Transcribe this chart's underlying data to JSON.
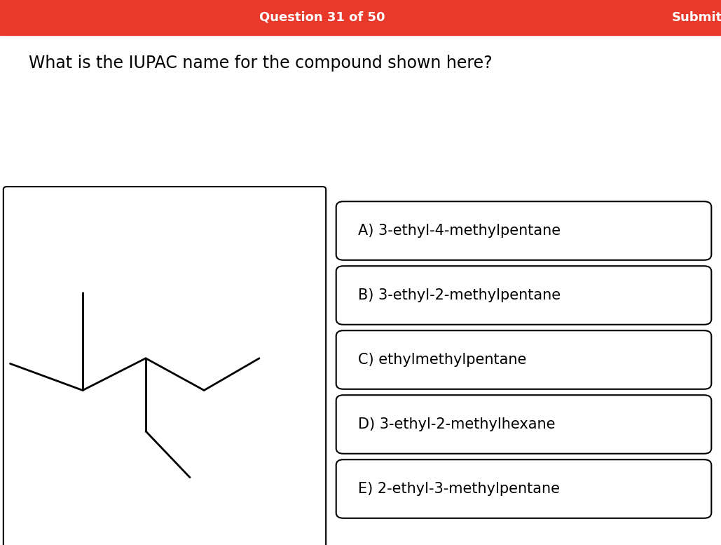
{
  "header_text": "Question 31 of 50",
  "submit_text": "Submit",
  "header_bg": "#e8392a",
  "header_text_color": "#ffffff",
  "question_text": "What is the IUPAC name for the compound shown here?",
  "question_fontsize": 17,
  "background_color": "#ffffff",
  "options": [
    "A) 3-ethyl-4-methylpentane",
    "B) 3-ethyl-2-methylpentane",
    "C) ethylmethylpentane",
    "D) 3-ethyl-2-methylhexane",
    "E) 2-ethyl-3-methylpentane"
  ],
  "option_fontsize": 15,
  "line_color": "#000000",
  "line_width": 2.0,
  "molecule_lines": [
    [
      0.04,
      0.5,
      0.175,
      0.415
    ],
    [
      0.175,
      0.415,
      0.175,
      0.245
    ],
    [
      0.175,
      0.415,
      0.275,
      0.48
    ],
    [
      0.275,
      0.48,
      0.365,
      0.415
    ],
    [
      0.365,
      0.415,
      0.435,
      0.48
    ],
    [
      0.275,
      0.48,
      0.275,
      0.62
    ],
    [
      0.275,
      0.62,
      0.345,
      0.695
    ]
  ]
}
